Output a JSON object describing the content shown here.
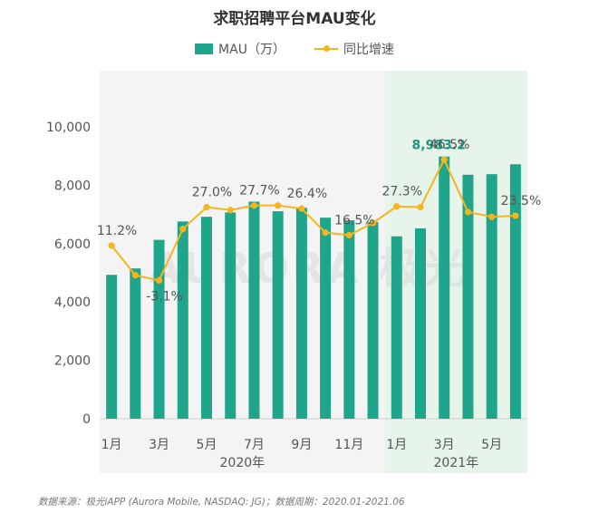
{
  "chart_data": {
    "type": "bar",
    "title": "求职招聘平台MAU变化",
    "categories": [
      "1月",
      "2月",
      "3月",
      "4月",
      "5月",
      "6月",
      "7月",
      "8月",
      "9月",
      "10月",
      "11月",
      "12月",
      "1月",
      "2月",
      "3月",
      "4月",
      "5月",
      "6月"
    ],
    "tick_labels": [
      "1月",
      "",
      "3月",
      "",
      "5月",
      "",
      "7月",
      "",
      "9月",
      "",
      "11月",
      "",
      "1月",
      "",
      "3月",
      "",
      "5月",
      ""
    ],
    "year_groups": [
      {
        "label": "2020年",
        "start": 0,
        "end": 11
      },
      {
        "label": "2021年",
        "start": 12,
        "end": 17
      }
    ],
    "series": [
      {
        "name": "MAU（万）",
        "type": "bar",
        "axis": "left",
        "values": [
          4930,
          5150,
          6130,
          6760,
          6920,
          7070,
          7440,
          7110,
          7230,
          6890,
          6800,
          6740,
          6250,
          6520,
          8983.2,
          8360,
          8380,
          8720
        ]
      },
      {
        "name": "同比增速",
        "type": "line",
        "axis": "right",
        "unit": "%",
        "values": [
          11.2,
          -1.0,
          -3.1,
          18.0,
          27.0,
          25.8,
          27.7,
          27.7,
          26.4,
          16.5,
          15.5,
          20.5,
          27.3,
          27.0,
          46.5,
          25.0,
          23.0,
          23.5
        ]
      }
    ],
    "bar_labels": [
      {
        "index": 14,
        "text": "8,983.2"
      }
    ],
    "line_labels": [
      {
        "index": 0,
        "text": "11.2%",
        "pos": "above"
      },
      {
        "index": 2,
        "text": "-3.1%",
        "pos": "below"
      },
      {
        "index": 4,
        "text": "27.0%",
        "pos": "above"
      },
      {
        "index": 6,
        "text": "27.7%",
        "pos": "above"
      },
      {
        "index": 8,
        "text": "26.4%",
        "pos": "above"
      },
      {
        "index": 10,
        "text": "16.5%",
        "pos": "above"
      },
      {
        "index": 12,
        "text": "27.3%",
        "pos": "above"
      },
      {
        "index": 14,
        "text": "46.5%",
        "pos": "above"
      },
      {
        "index": 17,
        "text": "23.5%",
        "pos": "above"
      }
    ],
    "yticks": [
      "0",
      "2,000",
      "4,000",
      "6,000",
      "8,000",
      "10,000"
    ],
    "ylim": [
      0,
      10000
    ],
    "y2lim": [
      -60,
      60
    ],
    "watermark": "AURORA 极光",
    "colors": {
      "bar": "#1fa58a",
      "line": "#f5b51f",
      "bar_label": "#1a9a80",
      "bg_2020": "#f4f4f4",
      "bg_2021": "#e6f4e9",
      "text": "#555555",
      "watermark": "#d9d9d9"
    }
  },
  "footer": "数据来源：极光iAPP (Aurora Mobile, NASDAQ: JG)；数据周期：2020.01-2021.06"
}
